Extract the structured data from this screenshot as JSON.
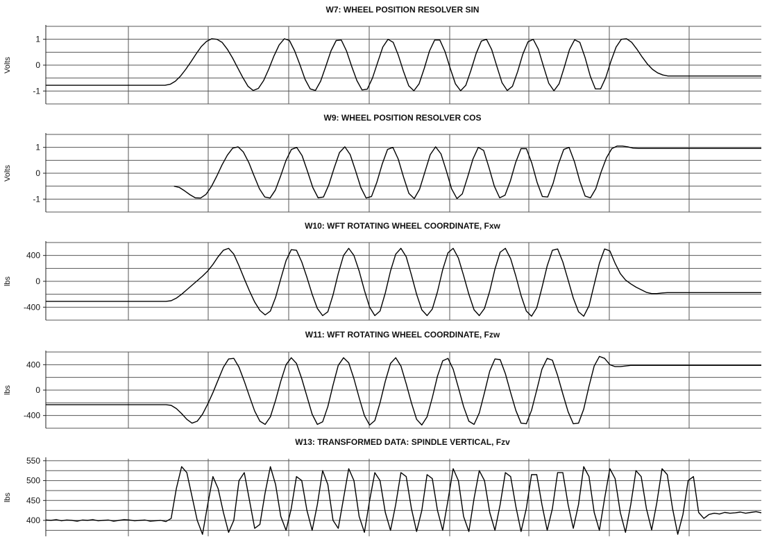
{
  "chart_data": [
    {
      "type": "line",
      "title": "W7: WHEEL POSITION RESOLVER SIN",
      "ylabel": "Volts",
      "ylim": [
        -1.5,
        1.5
      ],
      "yticks": [
        "1",
        "0",
        "-1"
      ],
      "grid": true,
      "series": [
        {
          "values": [
            -0.78,
            -0.78,
            -0.78,
            -0.78,
            -0.78,
            -0.78,
            -0.78,
            -0.78,
            -0.78,
            -0.78,
            -0.78,
            -0.78,
            -0.78,
            -0.78,
            -0.78,
            -0.78,
            -0.78,
            -0.78,
            -0.78,
            -0.78,
            -0.78,
            -0.78,
            -0.78,
            -0.78,
            -0.74,
            -0.62,
            -0.42,
            -0.16,
            0.13,
            0.44,
            0.72,
            0.92,
            1.02,
            1.0,
            0.88,
            0.62,
            0.28,
            -0.1,
            -0.48,
            -0.82,
            -0.98,
            -0.9,
            -0.6,
            -0.15,
            0.35,
            0.78,
            1.02,
            0.95,
            0.55,
            0.02,
            -0.55,
            -0.92,
            -0.98,
            -0.62,
            -0.05,
            0.55,
            0.95,
            0.97,
            0.55,
            -0.05,
            -0.6,
            -0.96,
            -0.93,
            -0.5,
            0.1,
            0.7,
            1.0,
            0.88,
            0.38,
            -0.25,
            -0.8,
            -0.99,
            -0.72,
            -0.12,
            0.55,
            0.97,
            0.97,
            0.52,
            -0.12,
            -0.72,
            -0.99,
            -0.78,
            -0.2,
            0.45,
            0.93,
            1.0,
            0.6,
            -0.05,
            -0.68,
            -0.98,
            -0.82,
            -0.25,
            0.42,
            0.9,
            1.0,
            0.62,
            -0.05,
            -0.7,
            -0.99,
            -0.72,
            -0.08,
            0.6,
            0.98,
            0.88,
            0.3,
            -0.42,
            -0.92,
            -0.92,
            -0.48,
            0.15,
            0.7,
            1.0,
            1.02,
            0.88,
            0.62,
            0.32,
            0.05,
            -0.16,
            -0.3,
            -0.38,
            -0.42,
            -0.42,
            -0.42,
            -0.42,
            -0.42,
            -0.42,
            -0.42,
            -0.42,
            -0.42,
            -0.42,
            -0.42,
            -0.42,
            -0.42,
            -0.42,
            -0.42,
            -0.42,
            -0.42,
            -0.42,
            -0.42
          ]
        }
      ]
    },
    {
      "type": "line",
      "title": "W9: WHEEL POSITION RESOLVER COS",
      "ylabel": "Volts",
      "ylim": [
        -1.5,
        1.5
      ],
      "yticks": [
        "1",
        "0",
        "-1"
      ],
      "grid": true,
      "series": [
        {
          "values": [
            null,
            null,
            null,
            null,
            null,
            null,
            null,
            null,
            null,
            null,
            null,
            null,
            null,
            null,
            null,
            null,
            null,
            null,
            null,
            null,
            null,
            null,
            null,
            null,
            -0.5,
            -0.55,
            -0.68,
            -0.83,
            -0.95,
            -0.96,
            -0.82,
            -0.52,
            -0.12,
            0.32,
            0.7,
            0.97,
            1.02,
            0.82,
            0.42,
            -0.1,
            -0.6,
            -0.92,
            -0.96,
            -0.65,
            -0.1,
            0.5,
            0.92,
            1.0,
            0.68,
            0.08,
            -0.55,
            -0.95,
            -0.92,
            -0.45,
            0.2,
            0.8,
            1.02,
            0.72,
            0.1,
            -0.55,
            -0.96,
            -0.9,
            -0.35,
            0.35,
            0.92,
            1.0,
            0.55,
            -0.15,
            -0.78,
            -0.98,
            -0.62,
            0.05,
            0.72,
            1.02,
            0.75,
            0.1,
            -0.6,
            -0.98,
            -0.8,
            -0.15,
            0.55,
            1.0,
            0.88,
            0.22,
            -0.5,
            -0.95,
            -0.85,
            -0.3,
            0.42,
            0.95,
            0.95,
            0.4,
            -0.35,
            -0.9,
            -0.92,
            -0.4,
            0.35,
            0.92,
            1.0,
            0.45,
            -0.3,
            -0.88,
            -0.95,
            -0.6,
            0.05,
            0.6,
            0.95,
            1.05,
            1.05,
            1.02,
            0.97,
            0.96,
            0.96,
            0.96,
            0.96,
            0.96,
            0.96,
            0.96,
            0.96,
            0.96,
            0.96,
            0.96,
            0.96,
            0.96,
            0.96,
            0.96,
            0.96,
            0.96,
            0.96,
            0.96,
            0.96,
            0.96,
            0.96,
            0.96,
            0.96
          ]
        }
      ]
    },
    {
      "type": "line",
      "title": "W10: WFT ROTATING WHEEL COORDINATE, Fxw",
      "ylabel": "lbs",
      "ylim": [
        -600,
        600
      ],
      "yticks": [
        "400",
        "0",
        "-400"
      ],
      "grid": true,
      "series": [
        {
          "values": [
            -310,
            -310,
            -310,
            -310,
            -310,
            -310,
            -310,
            -310,
            -310,
            -310,
            -310,
            -310,
            -310,
            -310,
            -310,
            -310,
            -310,
            -310,
            -310,
            -310,
            -310,
            -310,
            -310,
            -310,
            -300,
            -260,
            -200,
            -130,
            -60,
            10,
            80,
            160,
            260,
            380,
            480,
            510,
            420,
            240,
            40,
            -150,
            -320,
            -450,
            -520,
            -460,
            -250,
            40,
            320,
            490,
            480,
            300,
            60,
            -200,
            -420,
            -530,
            -470,
            -210,
            120,
            400,
            510,
            400,
            160,
            -140,
            -400,
            -530,
            -460,
            -180,
            160,
            420,
            510,
            380,
            100,
            -200,
            -440,
            -530,
            -430,
            -160,
            180,
            440,
            510,
            360,
            90,
            -200,
            -440,
            -530,
            -420,
            -150,
            190,
            450,
            510,
            350,
            80,
            -220,
            -460,
            -540,
            -410,
            -100,
            240,
            480,
            500,
            300,
            20,
            -260,
            -470,
            -540,
            -380,
            -50,
            280,
            500,
            470,
            280,
            120,
            20,
            -40,
            -90,
            -130,
            -170,
            -190,
            -190,
            -180,
            -175,
            -175,
            -175,
            -175,
            -175,
            -175,
            -175,
            -175,
            -175,
            -175,
            -175,
            -175,
            -175,
            -175,
            -175,
            -175,
            -175,
            -175,
            -175
          ]
        }
      ]
    },
    {
      "type": "line",
      "title": "W11: WFT ROTATING WHEEL COORDINATE, Fzw",
      "ylabel": "lbs",
      "ylim": [
        -600,
        600
      ],
      "yticks": [
        "400",
        "0",
        "-400"
      ],
      "grid": true,
      "series": [
        {
          "values": [
            -230,
            -230,
            -230,
            -230,
            -230,
            -230,
            -230,
            -230,
            -230,
            -230,
            -230,
            -230,
            -230,
            -230,
            -230,
            -230,
            -230,
            -230,
            -230,
            -230,
            -230,
            -230,
            -230,
            -230,
            -240,
            -290,
            -370,
            -460,
            -520,
            -490,
            -380,
            -220,
            -40,
            160,
            360,
            490,
            500,
            360,
            140,
            -100,
            -330,
            -490,
            -540,
            -420,
            -160,
            140,
            400,
            510,
            420,
            180,
            -100,
            -380,
            -540,
            -500,
            -260,
            80,
            390,
            510,
            430,
            180,
            -120,
            -400,
            -550,
            -480,
            -200,
            140,
            420,
            510,
            380,
            100,
            -200,
            -460,
            -550,
            -420,
            -120,
            220,
            460,
            500,
            330,
            40,
            -260,
            -490,
            -540,
            -360,
            -40,
            300,
            490,
            480,
            260,
            -40,
            -320,
            -520,
            -530,
            -320,
            0,
            330,
            500,
            470,
            230,
            -60,
            -340,
            -530,
            -520,
            -300,
            60,
            380,
            530,
            500,
            400,
            370,
            370,
            380,
            390,
            390,
            390,
            390,
            390,
            390,
            390,
            390,
            390,
            390,
            390,
            390,
            390,
            390,
            390,
            390,
            390,
            390,
            390,
            390,
            390,
            390,
            390,
            390,
            390,
            390
          ]
        }
      ]
    },
    {
      "type": "line",
      "title": "W13: TRANSFORMED DATA: SPINDLE VERTICAL, Fzv",
      "ylabel": "lbs",
      "ylim": [
        360,
        555
      ],
      "yticks": [
        "550",
        "500",
        "450",
        "400"
      ],
      "grid": true,
      "series": [
        {
          "values": [
            401,
            400,
            402,
            399,
            401,
            400,
            398,
            401,
            400,
            402,
            399,
            400,
            401,
            398,
            400,
            402,
            401,
            399,
            400,
            401,
            398,
            399,
            400,
            397,
            405,
            480,
            535,
            520,
            460,
            400,
            365,
            440,
            510,
            480,
            420,
            370,
            400,
            500,
            520,
            450,
            380,
            390,
            470,
            535,
            490,
            410,
            375,
            430,
            510,
            500,
            425,
            375,
            440,
            525,
            490,
            400,
            380,
            455,
            530,
            500,
            410,
            370,
            450,
            520,
            500,
            420,
            375,
            440,
            520,
            510,
            430,
            372,
            425,
            515,
            505,
            425,
            375,
            450,
            530,
            500,
            410,
            372,
            455,
            525,
            500,
            420,
            375,
            440,
            520,
            510,
            435,
            372,
            430,
            515,
            515,
            440,
            375,
            430,
            520,
            520,
            440,
            380,
            440,
            535,
            510,
            420,
            375,
            455,
            530,
            505,
            420,
            370,
            440,
            525,
            510,
            430,
            376,
            445,
            530,
            515,
            430,
            365,
            415,
            500,
            510,
            420,
            405,
            415,
            418,
            416,
            420,
            418,
            419,
            421,
            418,
            420,
            422,
            419
          ]
        }
      ]
    }
  ]
}
